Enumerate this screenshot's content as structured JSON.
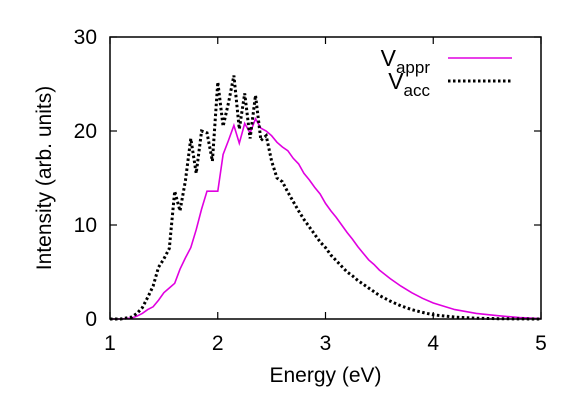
{
  "chart_data": {
    "type": "line",
    "title": "",
    "xlabel": "Energy (eV)",
    "ylabel": "Intensity (arb. units)",
    "xlim": [
      1,
      5
    ],
    "ylim": [
      0,
      30
    ],
    "xticks": [
      1,
      2,
      3,
      4,
      5
    ],
    "yticks": [
      0,
      10,
      20,
      30
    ],
    "grid": false,
    "legend_position": "top-right",
    "series": [
      {
        "name": "V_appr",
        "legend_main": "V",
        "legend_sub": "appr",
        "color": "#e000e0",
        "style": "solid",
        "x": [
          1.0,
          1.1,
          1.2,
          1.25,
          1.3,
          1.35,
          1.4,
          1.45,
          1.5,
          1.55,
          1.6,
          1.65,
          1.7,
          1.75,
          1.8,
          1.85,
          1.9,
          1.95,
          2.0,
          2.05,
          2.1,
          2.15,
          2.2,
          2.25,
          2.3,
          2.35,
          2.4,
          2.45,
          2.5,
          2.55,
          2.6,
          2.65,
          2.7,
          2.75,
          2.8,
          2.85,
          2.9,
          2.95,
          3.0,
          3.05,
          3.1,
          3.15,
          3.2,
          3.25,
          3.3,
          3.35,
          3.4,
          3.45,
          3.5,
          3.6,
          3.7,
          3.8,
          3.9,
          4.0,
          4.2,
          4.4,
          4.6,
          4.8,
          5.0
        ],
        "y": [
          0,
          0,
          0.1,
          0.3,
          0.6,
          1.0,
          1.3,
          2.0,
          2.8,
          3.3,
          3.8,
          5.3,
          6.5,
          7.6,
          9.5,
          11.7,
          13.6,
          13.6,
          13.6,
          17.5,
          19.0,
          20.6,
          18.7,
          20.8,
          19.8,
          21.3,
          20.3,
          20.0,
          19.5,
          18.8,
          18.3,
          17.9,
          17.1,
          16.5,
          15.5,
          14.8,
          14.0,
          13.3,
          12.3,
          11.5,
          10.8,
          10.0,
          9.2,
          8.5,
          7.7,
          7.0,
          6.3,
          5.8,
          5.2,
          4.3,
          3.5,
          2.8,
          2.2,
          1.7,
          1.0,
          0.6,
          0.35,
          0.15,
          0.05
        ]
      },
      {
        "name": "V_acc",
        "legend_main": "V",
        "legend_sub": "acc",
        "color": "#000000",
        "style": "dotted",
        "x": [
          1.0,
          1.1,
          1.2,
          1.25,
          1.3,
          1.35,
          1.4,
          1.45,
          1.5,
          1.55,
          1.6,
          1.65,
          1.7,
          1.75,
          1.8,
          1.85,
          1.9,
          1.95,
          2.0,
          2.05,
          2.1,
          2.15,
          2.2,
          2.25,
          2.3,
          2.35,
          2.4,
          2.45,
          2.5,
          2.55,
          2.6,
          2.65,
          2.7,
          2.75,
          2.8,
          2.85,
          2.9,
          2.95,
          3.0,
          3.05,
          3.1,
          3.15,
          3.2,
          3.25,
          3.3,
          3.35,
          3.4,
          3.45,
          3.5,
          3.6,
          3.7,
          3.8,
          3.9,
          4.0,
          4.2,
          4.4,
          4.6,
          4.8,
          5.0
        ],
        "y": [
          0,
          0,
          0.2,
          0.6,
          1.2,
          2.3,
          3.5,
          5.5,
          6.4,
          7.5,
          13.6,
          11.5,
          14.7,
          19.2,
          15.5,
          20.0,
          19.8,
          16.8,
          25.2,
          20.5,
          23.0,
          25.9,
          20.2,
          24.0,
          19.2,
          23.8,
          19.0,
          19.5,
          16.8,
          15.0,
          14.6,
          13.5,
          12.5,
          11.5,
          10.6,
          9.8,
          9.0,
          8.2,
          7.6,
          6.8,
          6.2,
          5.6,
          5.0,
          4.6,
          4.1,
          3.7,
          3.3,
          2.9,
          2.5,
          1.9,
          1.4,
          1.0,
          0.7,
          0.45,
          0.2,
          0.08,
          0.03,
          0.01,
          0.0
        ]
      }
    ]
  }
}
